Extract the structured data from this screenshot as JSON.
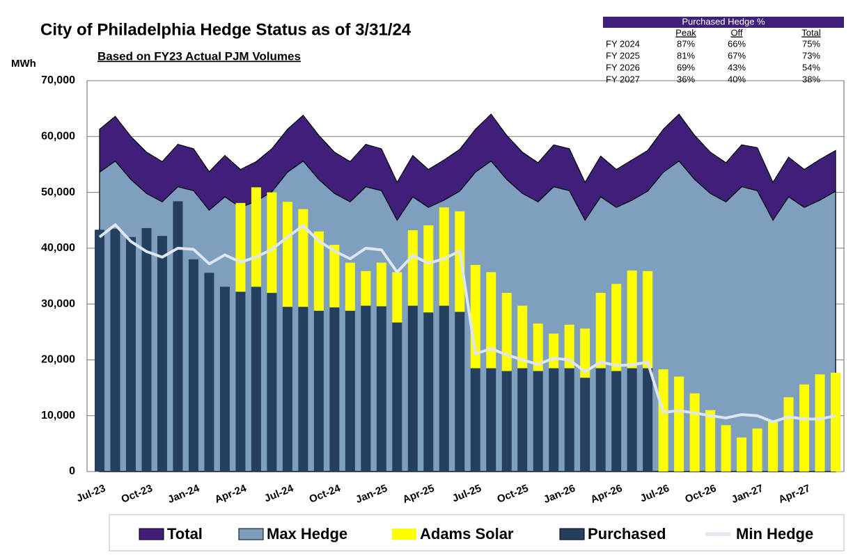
{
  "chart_data": {
    "type": "combo",
    "title": "City of Philadelphia  Hedge Status as of 3/31/24",
    "subtitle": "Based on FY23 Actual PJM Volumes",
    "y_label": "MWh",
    "categories": [
      "Jul-23",
      null,
      null,
      "Oct-23",
      null,
      null,
      "Jan-24",
      null,
      null,
      "Apr-24",
      null,
      null,
      "Jul-24",
      null,
      null,
      "Oct-24",
      null,
      null,
      "Jan-25",
      null,
      null,
      "Apr-25",
      null,
      null,
      "Jul-25",
      null,
      null,
      "Oct-25",
      null,
      null,
      "Jan-26",
      null,
      null,
      "Apr-26",
      null,
      null,
      "Jul-26",
      null,
      null,
      "Oct-26",
      null,
      null,
      "Jan-27",
      null,
      null,
      "Apr-27",
      null,
      null
    ],
    "ylim": [
      0,
      70000
    ],
    "yticks": [
      0,
      {
        "value": 10000,
        "label": "10,000"
      },
      {
        "value": 20000,
        "label": "20,000"
      },
      {
        "value": 30000,
        "label": "30,000"
      },
      {
        "value": 40000,
        "label": "40,000"
      },
      {
        "value": 50000,
        "label": "50,000"
      },
      {
        "value": 60000,
        "label": "60,000"
      },
      {
        "value": 70000,
        "label": "70,000"
      }
    ],
    "grid": true,
    "legend": "bottom",
    "series": [
      {
        "name": "Total",
        "type": "area",
        "color": "#3f1f7a",
        "values": [
          61300,
          63600,
          60000,
          57200,
          55500,
          58600,
          57800,
          53700,
          56600,
          54100,
          55500,
          57800,
          61300,
          63800,
          60200,
          57200,
          55500,
          58600,
          57800,
          51800,
          56600,
          54100,
          55800,
          57700,
          61300,
          64000,
          60200,
          57200,
          55300,
          58500,
          57800,
          51800,
          56500,
          54100,
          55800,
          57500,
          61300,
          64000,
          60200,
          57200,
          55300,
          58500,
          58000,
          51800,
          56300,
          54100,
          55900,
          57500
        ]
      },
      {
        "name": "Max Hedge",
        "type": "area",
        "color": "#7f9fbf",
        "values": [
          53600,
          55600,
          52300,
          49800,
          48300,
          51000,
          50300,
          46800,
          49200,
          47300,
          48400,
          50100,
          53600,
          55600,
          52300,
          49800,
          48300,
          51000,
          50300,
          45000,
          49200,
          47300,
          48600,
          50200,
          53600,
          55600,
          52300,
          49800,
          48300,
          51000,
          50300,
          45000,
          49200,
          47300,
          48600,
          50200,
          53600,
          55600,
          52300,
          49800,
          48300,
          51000,
          50300,
          45000,
          49200,
          47300,
          48600,
          50200
        ]
      },
      {
        "name": "Adams Solar",
        "type": "bar",
        "color": "#ffff00",
        "values": [
          0,
          0,
          0,
          0,
          0,
          0,
          0,
          0,
          0,
          15900,
          17800,
          18000,
          18800,
          17500,
          14200,
          11200,
          8600,
          6200,
          7800,
          9000,
          13500,
          15600,
          17600,
          18000,
          18500,
          17200,
          14000,
          11200,
          8500,
          6200,
          7800,
          8800,
          13500,
          15600,
          17500,
          17400,
          18300,
          17000,
          14000,
          11000,
          8300,
          6100,
          7700,
          9000,
          13300,
          15600,
          17400,
          17700
        ]
      },
      {
        "name": "Purchased",
        "type": "bar",
        "color": "#253f5f",
        "values": [
          43300,
          43500,
          42000,
          43600,
          42200,
          48400,
          38000,
          35600,
          33100,
          32200,
          33100,
          32000,
          29500,
          29500,
          28800,
          29400,
          28800,
          29700,
          29600,
          26700,
          29700,
          28500,
          29700,
          28600,
          18500,
          18500,
          18000,
          18500,
          18000,
          18500,
          18500,
          16800,
          18500,
          18000,
          18500,
          18500,
          0,
          0,
          0,
          0,
          0,
          0,
          0,
          0,
          0,
          0,
          0,
          0
        ]
      },
      {
        "name": "Min Hedge",
        "type": "line",
        "color": "#dde6f2",
        "values": [
          42000,
          44200,
          41200,
          39400,
          38400,
          40000,
          39800,
          37200,
          38800,
          37500,
          38400,
          39800,
          42000,
          44000,
          41300,
          39500,
          38100,
          40000,
          39700,
          35700,
          38700,
          37300,
          38100,
          39500,
          21100,
          22000,
          20900,
          20000,
          19200,
          20300,
          20000,
          17900,
          19600,
          19000,
          19100,
          19600,
          10600,
          10900,
          10500,
          10000,
          9600,
          10200,
          10000,
          8900,
          9800,
          9400,
          9400,
          10000
        ]
      }
    ]
  },
  "table": {
    "title": "Purchased Hedge %",
    "columns": [
      "Peak",
      "Off",
      "Total"
    ],
    "rows": [
      [
        "FY 2024",
        "87%",
        "66%",
        "75%"
      ],
      [
        "FY 2025",
        "81%",
        "67%",
        "73%"
      ],
      [
        "FY 2026",
        "69%",
        "43%",
        "54%"
      ],
      [
        "FY 2027",
        "36%",
        "40%",
        "38%"
      ]
    ]
  }
}
